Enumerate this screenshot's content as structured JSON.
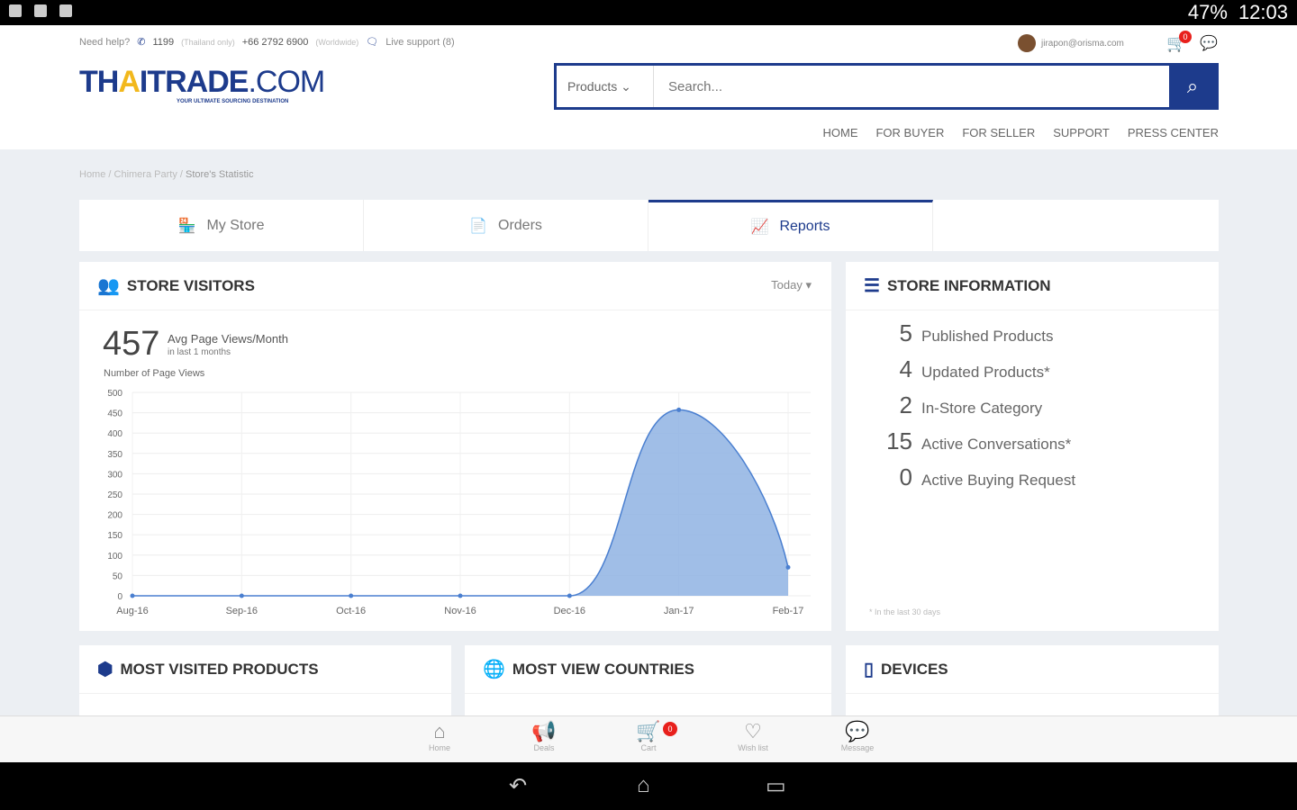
{
  "status": {
    "battery": "47%",
    "time": "12:03"
  },
  "header": {
    "help": "Need help?",
    "phone1": "1199",
    "phone1_note": "(Thailand only)",
    "phone2": "+66 2792 6900",
    "phone2_note": "(Worldwide)",
    "live": "Live support (8)",
    "logo": {
      "a": "TH",
      "b": "A",
      "c": "ITRADE",
      "d": ".COM",
      "tag": "YOUR ULTIMATE SOURCING DESTINATION"
    },
    "user_email": "jirapon@orisma.com",
    "cart_count": "0",
    "search": {
      "category": "Products ⌄",
      "placeholder": "Search..."
    },
    "nav": [
      "HOME",
      "FOR BUYER",
      "FOR SELLER",
      "SUPPORT",
      "PRESS CENTER"
    ]
  },
  "breadcrumb": {
    "items": [
      "Home",
      "Chimera Party"
    ],
    "current": "Store's Statistic"
  },
  "tabs": [
    {
      "label": "My Store",
      "icon": "🏪"
    },
    {
      "label": "Orders",
      "icon": "📄"
    },
    {
      "label": "Reports",
      "icon": "📈"
    }
  ],
  "visitors": {
    "title": "STORE VISITORS",
    "range": "Today ▾",
    "value": "457",
    "label": "Avg Page Views/Month",
    "sub": "in last 1 months",
    "ylabel": "Number of Page Views"
  },
  "chart_data": {
    "type": "area",
    "x": [
      "Aug-16",
      "Sep-16",
      "Oct-16",
      "Nov-16",
      "Dec-16",
      "Jan-17",
      "Feb-17"
    ],
    "values": [
      0,
      0,
      0,
      0,
      0,
      457,
      70
    ],
    "ylim": [
      0,
      500
    ],
    "yticks": [
      0,
      50,
      100,
      150,
      200,
      250,
      300,
      350,
      400,
      450,
      500
    ],
    "ylabel": "Number of Page Views",
    "grid": true,
    "color": "#8fb3e3"
  },
  "store_info": {
    "title": "STORE INFORMATION",
    "items": [
      {
        "n": "5",
        "label": "Published Products"
      },
      {
        "n": "4",
        "label": "Updated Products*"
      },
      {
        "n": "2",
        "label": "In-Store Category"
      },
      {
        "n": "15",
        "label": "Active Conversations*"
      },
      {
        "n": "0",
        "label": "Active Buying Request"
      }
    ],
    "note": "* In the last 30 days"
  },
  "most_visited": {
    "title": "MOST VISITED PRODUCTS"
  },
  "countries": {
    "title": "MOST VIEW COUNTRIES"
  },
  "devices": {
    "title": "DEVICES"
  },
  "bottom": [
    {
      "label": "Home",
      "icon": "⌂"
    },
    {
      "label": "Deals",
      "icon": "📢"
    },
    {
      "label": "Cart",
      "icon": "🛒"
    },
    {
      "label": "Wish list",
      "icon": "♡"
    },
    {
      "label": "Message",
      "icon": "💬"
    }
  ]
}
